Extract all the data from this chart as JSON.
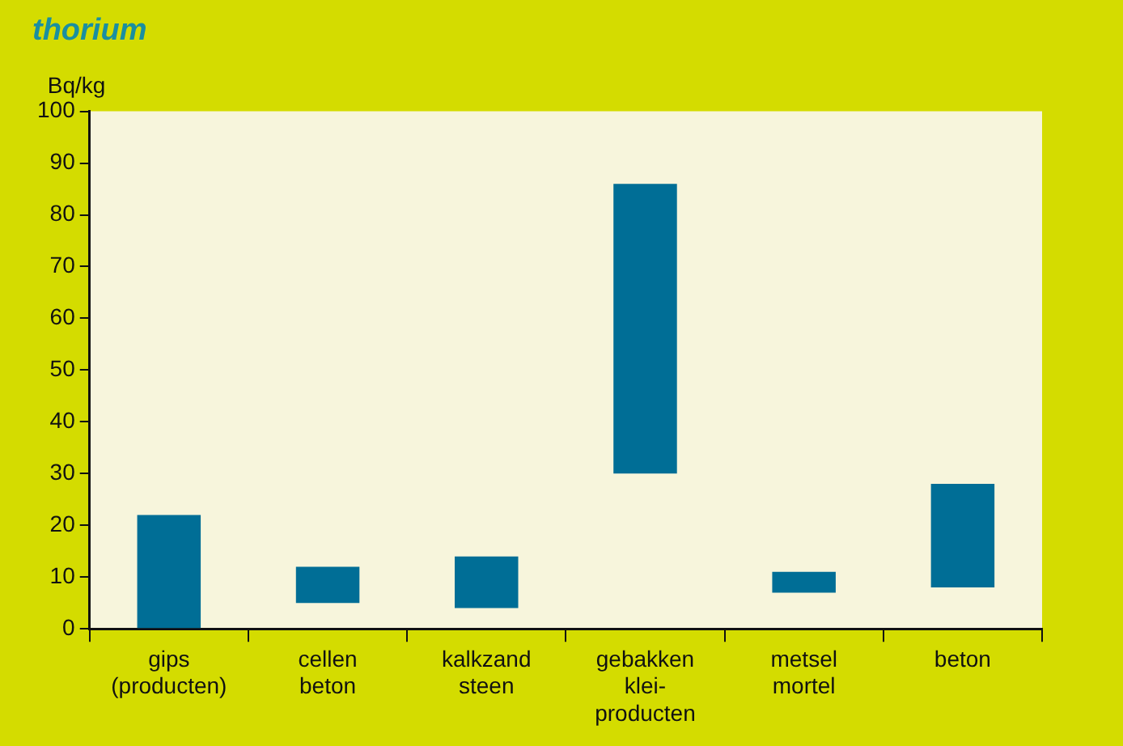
{
  "chart_data": {
    "type": "bar",
    "title": "thorium",
    "ylabel": "Bq/kg",
    "categories": [
      "gips\n(producten)",
      "cellen\nbeton",
      "kalkzand\nsteen",
      "gebakken\nklei-\nproducten",
      "metsel\nmortel",
      "beton"
    ],
    "base": [
      0,
      5,
      4,
      30,
      7,
      8
    ],
    "values": [
      22,
      7,
      10,
      56,
      4,
      20
    ],
    "color": "#006e96",
    "ylim": [
      0,
      100
    ],
    "yticks": [
      0,
      10,
      20,
      30,
      40,
      50,
      60,
      70,
      80,
      90,
      100
    ],
    "grid": false,
    "legend": false
  }
}
